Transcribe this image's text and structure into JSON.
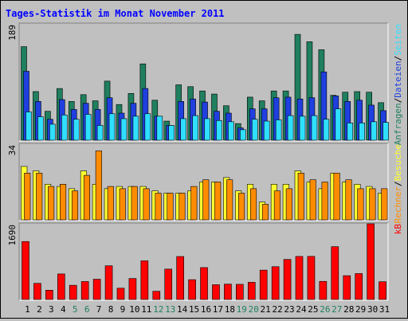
{
  "chart_data": {
    "type": "bar",
    "title": "Tages-Statistik im Monat November 2011",
    "categories": [
      "1",
      "2",
      "3",
      "4",
      "5",
      "6",
      "7",
      "8",
      "9",
      "10",
      "11",
      "12",
      "13",
      "14",
      "15",
      "16",
      "17",
      "18",
      "19",
      "20",
      "21",
      "22",
      "23",
      "24",
      "25",
      "26",
      "27",
      "28",
      "29",
      "30",
      "31"
    ],
    "weekend_days": [
      "5",
      "6",
      "12",
      "13",
      "19",
      "20",
      "26",
      "27"
    ],
    "colors": {
      "title": "#0000ff",
      "anfragen": "#1f7f5f",
      "dateien": "#1f3fdf",
      "seiten": "#2fdfff",
      "besuche": "#ffff30",
      "rechner": "#ff8c00",
      "kb": "#ff0000",
      "weekend_label": "#1f7f5f",
      "weekday_label": "#000000"
    },
    "panels": [
      {
        "ymax_label": "189",
        "ylim": [
          0,
          189
        ],
        "legend": [
          {
            "text": "Anfragen",
            "color": "#1f7f5f"
          },
          {
            "text": "/",
            "color": "#000000"
          },
          {
            "text": "Dateien",
            "color": "#1f3fdf"
          },
          {
            "text": "/",
            "color": "#000000"
          },
          {
            "text": "Seiten",
            "color": "#2fdfff"
          }
        ],
        "series": [
          {
            "name": "Anfragen",
            "values": [
              152,
              79,
              47,
              84,
              63,
              74,
              64,
              96,
              58,
              76,
              124,
              65,
              31,
              90,
              87,
              80,
              75,
              56,
              27,
              70,
              64,
              80,
              80,
              172,
              160,
              147,
              73,
              78,
              79,
              78,
              61
            ]
          },
          {
            "name": "Dateien",
            "values": [
              112,
              63,
              34,
              66,
              50,
              60,
              50,
              69,
              44,
              60,
              84,
              39,
              24,
              63,
              67,
              62,
              47,
              44,
              20,
              51,
              51,
              69,
              70,
              67,
              69,
              111,
              72,
              63,
              65,
              57,
              48
            ]
          },
          {
            "name": "Seiten",
            "values": [
              46,
              38,
              26,
              41,
              34,
              42,
              24,
              43,
              35,
              39,
              43,
              39,
              24,
              35,
              40,
              35,
              32,
              30,
              17,
              34,
              31,
              33,
              40,
              39,
              40,
              34,
              51,
              28,
              28,
              30,
              29
            ]
          }
        ]
      },
      {
        "ymax_label": "34",
        "ylim": [
          0,
          34
        ],
        "legend": [
          {
            "text": "Rechner",
            "color": "#ff8c00"
          },
          {
            "text": "/",
            "color": "#000000"
          },
          {
            "text": "Besuche",
            "color": "#ffff30"
          }
        ],
        "series": [
          {
            "name": "Besuche",
            "values": [
              24,
              22,
              16,
              15,
              14,
              22,
              16,
              14,
              15,
              15,
              15,
              13,
              12,
              12,
              13,
              17,
              17,
              19,
              13,
              16,
              8,
              16,
              16,
              22,
              17,
              14,
              21,
              17,
              16,
              15,
              12
            ]
          },
          {
            "name": "Rechner",
            "values": [
              21,
              21,
              15,
              16,
              13,
              20,
              31,
              15,
              14,
              15,
              14,
              12,
              12,
              12,
              15,
              18,
              17,
              18,
              12,
              14,
              7,
              13,
              14,
              21,
              18,
              17,
              21,
              18,
              14,
              14,
              14
            ]
          }
        ]
      },
      {
        "ymax_label": "1690",
        "ylim": [
          0,
          1690
        ],
        "legend": [
          {
            "text": "kB",
            "color": "#ff0000"
          }
        ],
        "series": [
          {
            "name": "kB",
            "values": [
              1295,
              361,
              208,
              571,
              318,
              401,
              453,
              753,
              253,
              469,
              864,
              184,
              679,
              960,
              443,
              713,
              330,
              343,
              339,
              384,
              656,
              733,
              895,
              962,
              963,
              405,
              1180,
              532,
              579,
              1690,
              397
            ]
          }
        ]
      }
    ]
  }
}
